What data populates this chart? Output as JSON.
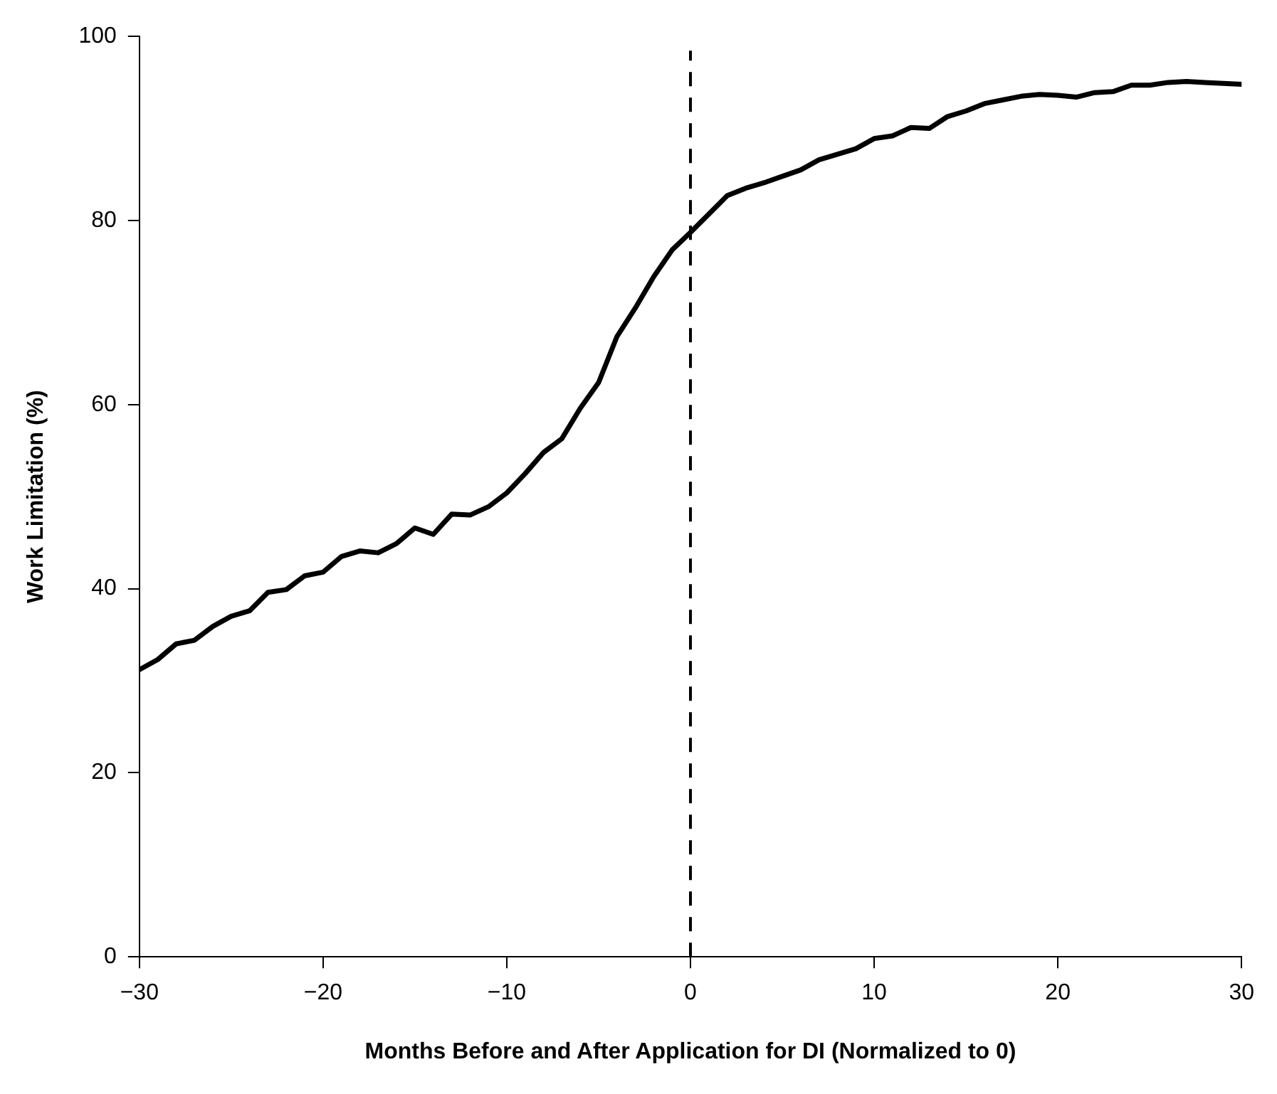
{
  "chart_data": {
    "type": "line",
    "xlabel": "Months Before and After Application for DI (Normalized to 0)",
    "ylabel": "Work Limitation (%)",
    "x": [
      -30,
      -29,
      -28,
      -27,
      -26,
      -25,
      -24,
      -23,
      -22,
      -21,
      -20,
      -19,
      -18,
      -17,
      -16,
      -15,
      -14,
      -13,
      -12,
      -11,
      -10,
      -9,
      -8,
      -7,
      -6,
      -5,
      -4,
      -3,
      -2,
      -1,
      0,
      1,
      2,
      3,
      4,
      5,
      6,
      7,
      8,
      9,
      10,
      11,
      12,
      13,
      14,
      15,
      16,
      17,
      18,
      19,
      20,
      21,
      22,
      23,
      24,
      25,
      26,
      27,
      28,
      29,
      30
    ],
    "series": [
      {
        "color": "#000000",
        "values": [
          31.2,
          32.3,
          34.0,
          34.4,
          35.9,
          37.0,
          37.6,
          39.6,
          39.9,
          41.4,
          41.8,
          43.5,
          44.1,
          43.9,
          44.9,
          46.6,
          45.9,
          48.1,
          48.0,
          48.9,
          50.4,
          52.5,
          54.8,
          56.3,
          59.6,
          62.4,
          67.4,
          70.5,
          73.9,
          76.8,
          78.7,
          80.7,
          82.7,
          83.5,
          84.1,
          84.8,
          85.5,
          86.6,
          87.2,
          87.8,
          88.9,
          89.2,
          90.1,
          90.0,
          91.3,
          91.9,
          92.7,
          93.1,
          93.5,
          93.7,
          93.6,
          93.4,
          93.9,
          94.0,
          94.7,
          94.7,
          95.0,
          95.1,
          95.0,
          94.9,
          94.8
        ]
      }
    ],
    "xlim": [
      -30,
      30
    ],
    "xticks": [
      {
        "value": -30,
        "label": "−30"
      },
      {
        "value": -20,
        "label": "−20"
      },
      {
        "value": -10,
        "label": "−10"
      },
      0,
      10,
      20,
      30
    ],
    "ylim": [
      0,
      100
    ],
    "yticks": [
      0,
      20,
      40,
      60,
      80,
      100
    ],
    "ref_lines": [
      {
        "axis": "x",
        "value": 0,
        "color": "#000000",
        "line_style": "dashed"
      }
    ],
    "grid": false,
    "legend": false,
    "marker": "none",
    "line_style": "solid"
  }
}
